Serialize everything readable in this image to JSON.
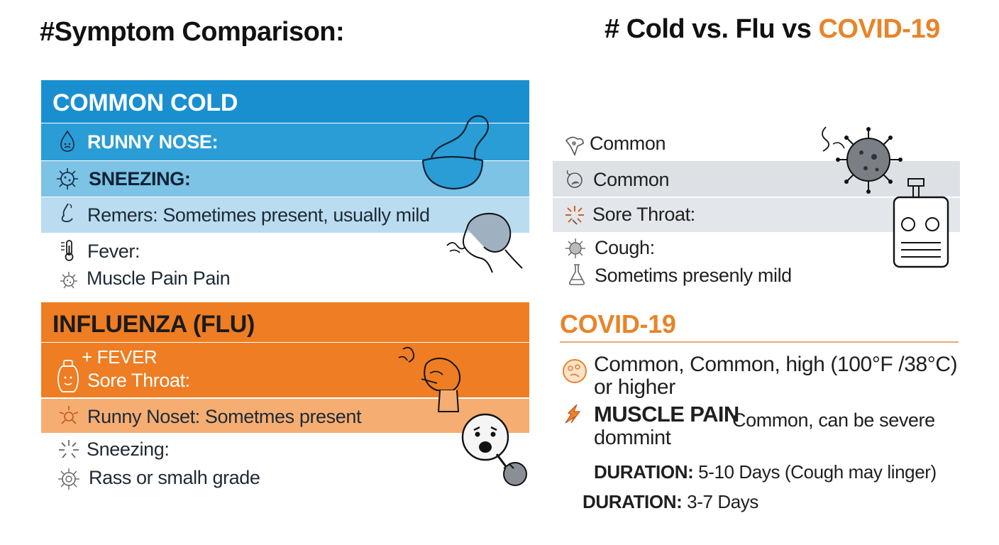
{
  "header": {
    "left_title": "#Symptom Comparison:",
    "right_title_prefix": "# Cold vs. Flu vs",
    "right_title_accent": "COVID-19"
  },
  "colors": {
    "cold_blue": "#1a8fcf",
    "cold_light": "#7cc3e6",
    "cold_pale": "#b9dcf0",
    "flu_orange": "#ee7d23",
    "flu_light": "#f6ad72",
    "covid_orange": "#e8842a",
    "gray_band": "#dde1e6"
  },
  "cold": {
    "title": "COMMON COLD",
    "rows": [
      {
        "label": "RUNNY NOSE:",
        "icon": "nose-drip-icon"
      },
      {
        "label": "SNEEZING:",
        "icon": "virus-icon"
      },
      {
        "label": "Remers: Sometimes present, usually mild",
        "icon": "nose-icon"
      },
      {
        "label": "Fever:",
        "icon": "thermometer-icon"
      },
      {
        "label": "Muscle Pain Pain",
        "icon": "germ-icon"
      }
    ]
  },
  "flu": {
    "title": "INFLUENZA (FLU)",
    "rows": [
      {
        "line1": "+ FEVER",
        "line2": "Sore Throat:",
        "icon": "bottle-face-icon"
      },
      {
        "label": "Runny Noset: Sometmes present",
        "icon": "burst-icon"
      },
      {
        "label": "Sneezing:",
        "icon": "spark-icon"
      },
      {
        "label": "Rass or smalh grade",
        "icon": "virus-outline-icon"
      }
    ]
  },
  "right_list": {
    "rows": [
      {
        "label": "Common",
        "icon": "tissue-icon"
      },
      {
        "label": "Common",
        "icon": "throat-icon"
      },
      {
        "label": "Sore Throat:",
        "icon": "burst-icon"
      },
      {
        "label": "Cough:",
        "icon": "germ-icon"
      },
      {
        "label": "Sometims presenly mild",
        "icon": "flask-icon"
      }
    ]
  },
  "covid": {
    "title": "COVID-19",
    "fever_text_line1": "Common, Common, high (100°F /38°C)",
    "fever_text_line2": "or higher",
    "muscle_label": "MUSCLE PAIN",
    "muscle_text": "Common, can be severe",
    "muscle_text_line2": "dommint",
    "duration1_label": "DURATION:",
    "duration1_value": "5-10 Days (Cough may linger)",
    "duration2_label": "DURATION:",
    "duration2_value": "3-7 Days"
  }
}
